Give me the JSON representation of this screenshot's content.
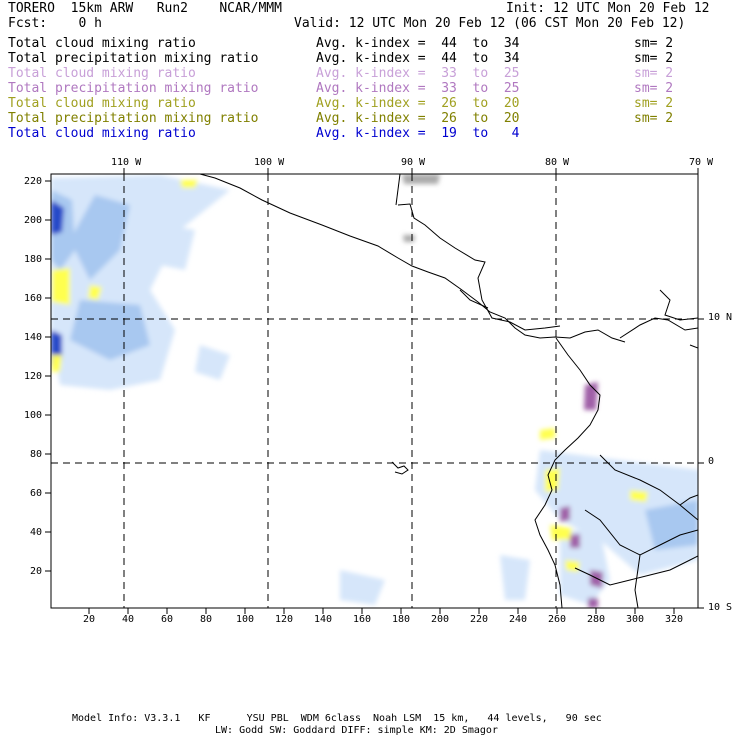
{
  "header": {
    "model": "TORERO  15km ARW   Run2    NCAR/MMM",
    "init": "Init: 12 UTC Mon 20 Feb 12",
    "fcst": "Fcst:    0 h",
    "valid": "Valid: 12 UTC Mon 20 Feb 12 (06 CST Mon 20 Feb 12)"
  },
  "variables": [
    {
      "name": "Total cloud mixing ratio",
      "kindex": "Avg. k-index =  44  to  34",
      "sm": "sm= 2",
      "color": "#000000"
    },
    {
      "name": "Total precipitation mixing ratio",
      "kindex": "Avg. k-index =  44  to  34",
      "sm": "sm= 2",
      "color": "#000000"
    },
    {
      "name": "Total cloud mixing ratio",
      "kindex": "Avg. k-index =  33  to  25",
      "sm": "sm= 2",
      "color": "#c8a0d8"
    },
    {
      "name": "Total precipitation mixing ratio",
      "kindex": "Avg. k-index =  33  to  25",
      "sm": "sm= 2",
      "color": "#b078c0"
    },
    {
      "name": "Total cloud mixing ratio",
      "kindex": "Avg. k-index =  26  to  20",
      "sm": "sm= 2",
      "color": "#a0a020"
    },
    {
      "name": "Total precipitation mixing ratio",
      "kindex": "Avg. k-index =  26  to  20",
      "sm": "sm= 2",
      "color": "#808000"
    },
    {
      "name": "Total cloud mixing ratio",
      "kindex": "Avg. k-index =  19  to   4",
      "sm": "",
      "color": "#0000d0"
    }
  ],
  "axes": {
    "top_longitudes": [
      "110 W",
      "100 W",
      "90 W",
      "80 W",
      "70 W"
    ],
    "right_latitudes": [
      "10 N",
      "0",
      "10 S"
    ],
    "left_ticks": [
      "220",
      "200",
      "180",
      "160",
      "140",
      "120",
      "100",
      "80",
      "60",
      "40",
      "20"
    ],
    "bottom_ticks": [
      "20",
      "40",
      "60",
      "80",
      "100",
      "120",
      "140",
      "160",
      "180",
      "200",
      "220",
      "240",
      "260",
      "280",
      "300",
      "320"
    ]
  },
  "footer": {
    "line1": "Model Info: V3.3.1   KF      YSU PBL  WDM 6class  Noah LSM  15 km,   44 levels,   90 sec",
    "line2": "LW: Godd SW: Goddard DIFF: simple KM: 2D Smagor"
  },
  "colors": {
    "light_blue": "#d6e6fa",
    "mid_blue": "#a8c8f0",
    "dark_blue": "#2848c8",
    "yellow": "#ffff50",
    "purple": "#a060a8",
    "gray": "#aaaaaa"
  }
}
